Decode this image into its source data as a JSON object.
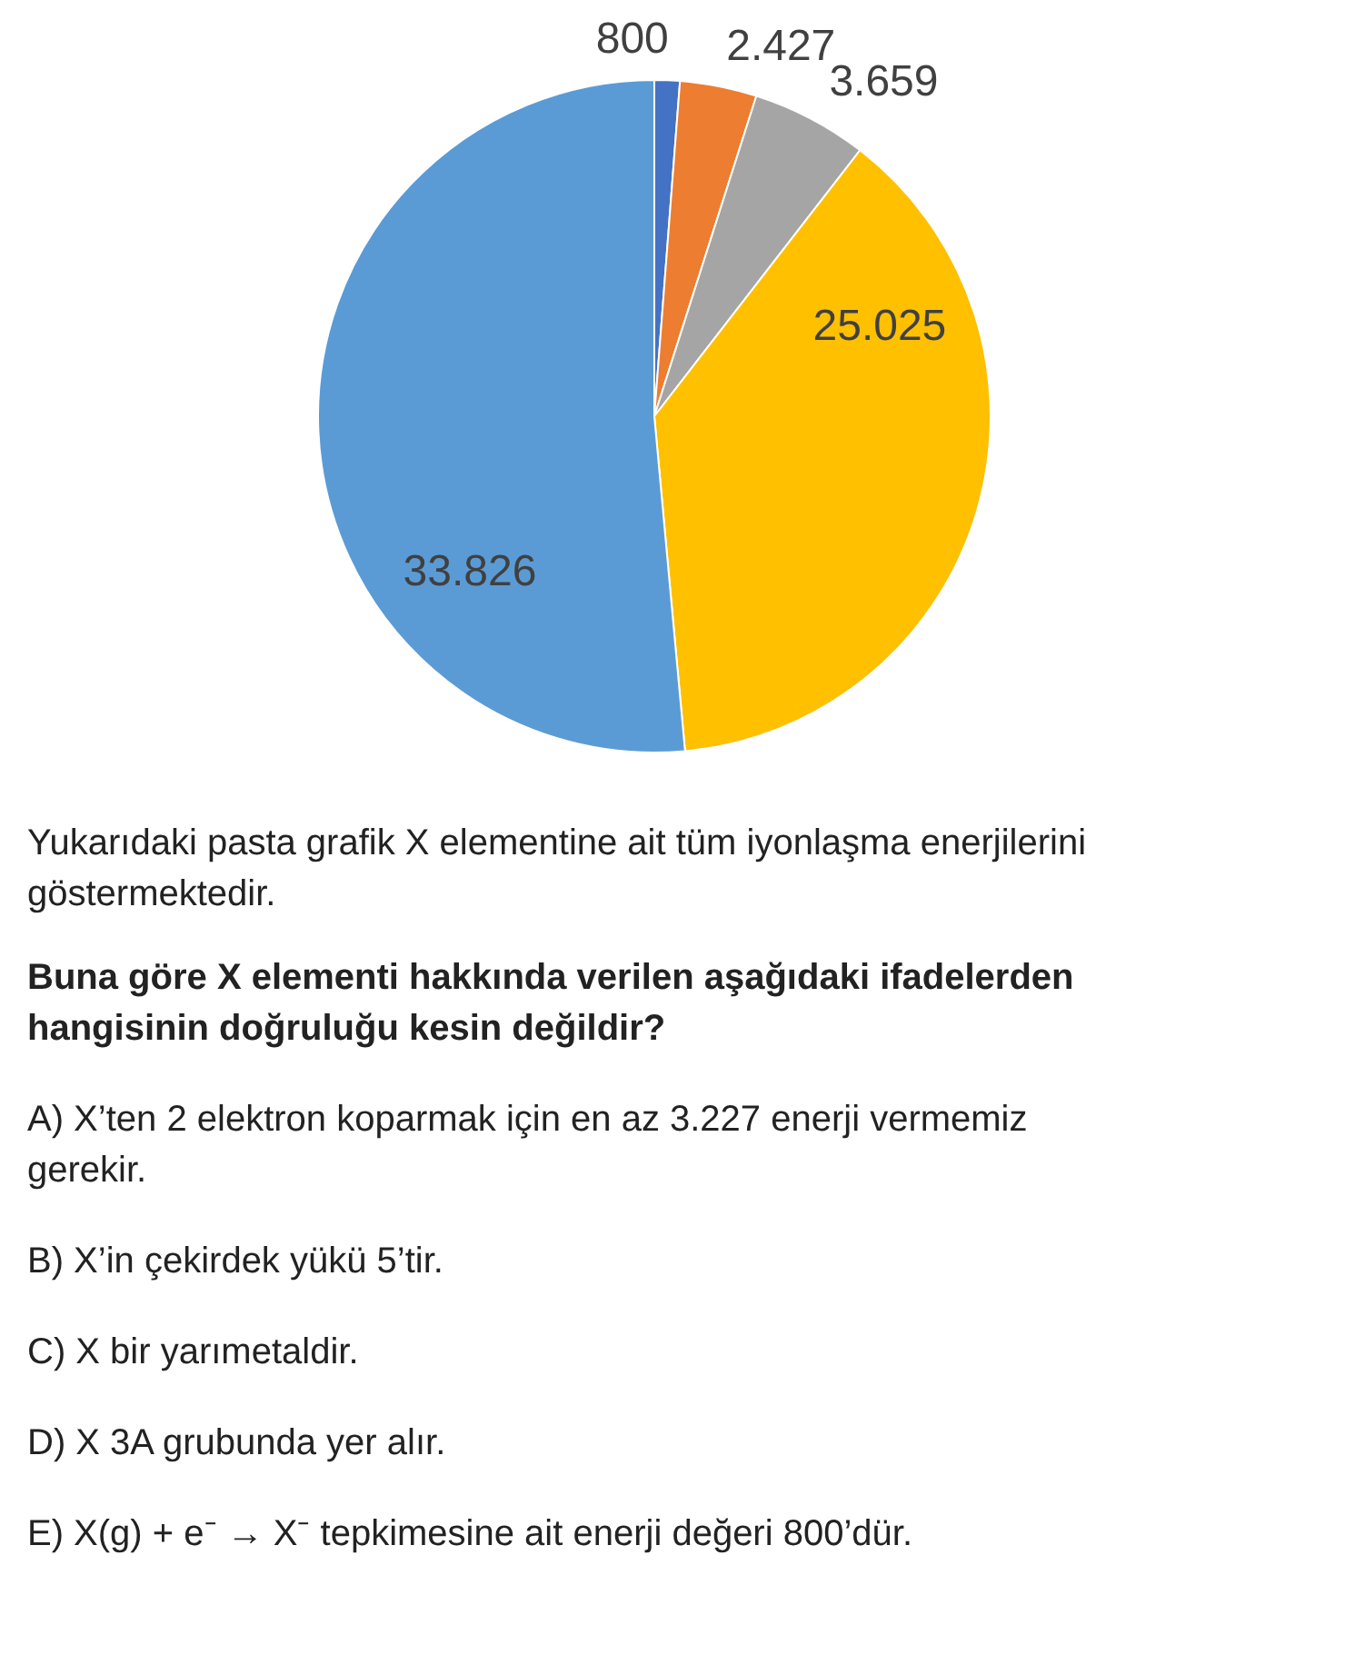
{
  "chart_data": {
    "type": "pie",
    "categories": [
      null,
      null,
      null,
      null,
      null
    ],
    "values": [
      800,
      2427,
      3659,
      25025,
      33826
    ],
    "value_labels": [
      "800",
      "2.427",
      "3.659",
      "25.025",
      "33.826"
    ],
    "colors": [
      "#4472c4",
      "#ed7d31",
      "#a5a5a5",
      "#ffc000",
      "#5b9bd5"
    ],
    "annotations": [
      "Yukarıdaki pasta grafik X elementine ait tüm iyonlaşma enerjilerini göstermektedir.",
      "Buna göre X elementi hakkında verilen aşağıdaki ifadelerden hangisinin doğruluğu kesin değildir?",
      "A)  X’ten 2 elektron koparmak için en az 3.227 enerji vermemiz gerekir.",
      "B)  X’in çekirdek yükü 5’tir.",
      "C)  X bir yarımetaldir.",
      "D)  X 3A grubunda yer alır.",
      "E)  X(g) + e⁻ → X⁻ tepkimesine ait enerji değeri 800’dür."
    ]
  }
}
